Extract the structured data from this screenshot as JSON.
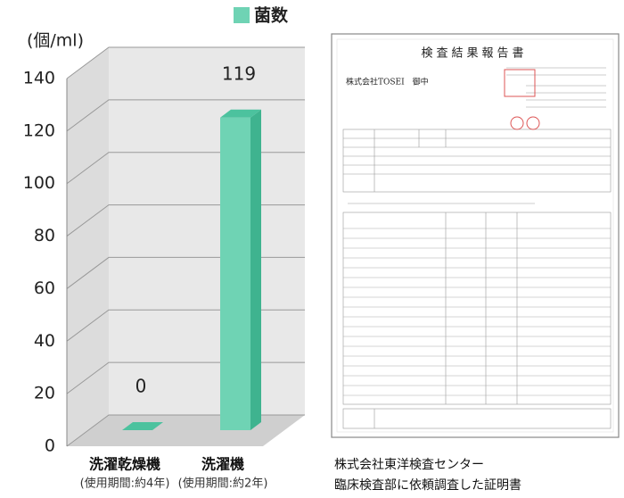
{
  "chart_data": {
    "type": "bar3d",
    "unit_label": "(個/ml)",
    "categories": [
      "洗濯乾燥機",
      "洗濯機"
    ],
    "category_notes": [
      "(使用期間:約4年)",
      "(使用期間:約2年)"
    ],
    "series": [
      {
        "name": "菌数",
        "color": "#6fd3b4",
        "values": [
          0,
          119
        ]
      }
    ],
    "ylim": [
      0,
      140
    ],
    "yticks": [
      0,
      20,
      40,
      60,
      80,
      100,
      120,
      140
    ],
    "grid": true
  },
  "document": {
    "title": "検査結果報告書",
    "addressee": "株式会社TOSEI　御中",
    "caption": [
      "株式会社東洋検査センター",
      "臨床検査部に依頼調査した証明書"
    ]
  }
}
